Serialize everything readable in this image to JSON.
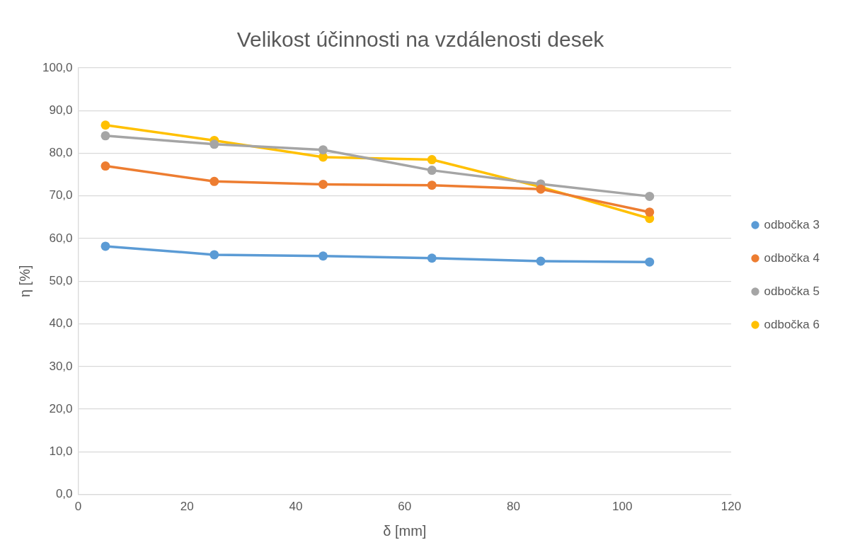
{
  "chart_data": {
    "type": "line",
    "title": "Velikost účinnosti na vzdálenosti desek",
    "xlabel": "δ [mm]",
    "ylabel": "η [%]",
    "x": [
      5,
      25,
      45,
      65,
      85,
      105
    ],
    "series": [
      {
        "name": "odbočka 3",
        "color": "#5b9bd5",
        "values": [
          58.2,
          56.2,
          55.9,
          55.4,
          54.7,
          54.5
        ]
      },
      {
        "name": "odbočka 4",
        "color": "#ed7d31",
        "values": [
          77.0,
          73.4,
          72.7,
          72.5,
          71.6,
          66.2
        ]
      },
      {
        "name": "odbočka 5",
        "color": "#a5a5a5",
        "values": [
          84.1,
          82.1,
          80.8,
          76.0,
          72.8,
          69.9
        ]
      },
      {
        "name": "odbočka 6",
        "color": "#ffc000",
        "values": [
          86.6,
          83.0,
          79.1,
          78.5,
          72.1,
          64.7
        ]
      }
    ],
    "xlim": [
      0,
      120
    ],
    "xticks": [
      0,
      20,
      40,
      60,
      80,
      100,
      120
    ],
    "ylim": [
      0,
      100
    ],
    "yticks": [
      {
        "value": 0,
        "label": "0,0"
      },
      {
        "value": 10,
        "label": "10,0"
      },
      {
        "value": 20,
        "label": "20,0"
      },
      {
        "value": 30,
        "label": "30,0"
      },
      {
        "value": 40,
        "label": "40,0"
      },
      {
        "value": 50,
        "label": "50,0"
      },
      {
        "value": 60,
        "label": "60,0"
      },
      {
        "value": 70,
        "label": "70,0"
      },
      {
        "value": 80,
        "label": "80,0"
      },
      {
        "value": 90,
        "label": "90,0"
      },
      {
        "value": 100,
        "label": "100,0"
      }
    ],
    "grid": "y",
    "legend": "right",
    "marker": "circle",
    "line_style": "solid"
  }
}
